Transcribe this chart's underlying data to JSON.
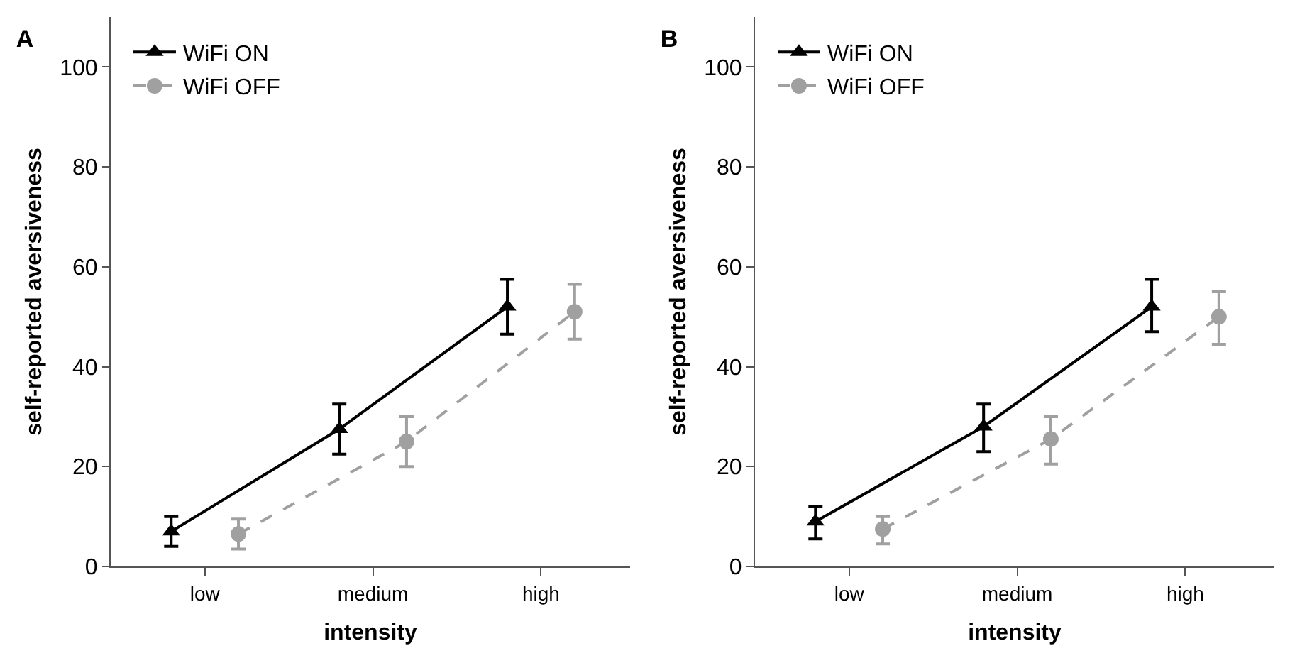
{
  "chart_data": [
    {
      "type": "line",
      "title": "A",
      "xlabel": "intensity",
      "ylabel": "self-reported aversiveness",
      "categories": [
        "low",
        "medium",
        "high"
      ],
      "ylim": [
        0,
        110
      ],
      "yticks": [
        0,
        20,
        40,
        60,
        80,
        100
      ],
      "grid": false,
      "legend": "top left",
      "series": [
        {
          "name": "WiFi ON",
          "color": "#000000",
          "marker": "triangle",
          "line_style": "solid",
          "values": [
            7,
            27.5,
            52
          ],
          "errors": [
            [
              4,
              10
            ],
            [
              22.5,
              32.5
            ],
            [
              46.5,
              57.5
            ]
          ]
        },
        {
          "name": "WiFi OFF",
          "color": "#a0a0a0",
          "marker": "circle",
          "line_style": "dashed",
          "values": [
            6.5,
            25,
            51
          ],
          "errors": [
            [
              3.5,
              9.5
            ],
            [
              20,
              30
            ],
            [
              45.5,
              56.5
            ]
          ]
        }
      ]
    },
    {
      "type": "line",
      "title": "B",
      "xlabel": "intensity",
      "ylabel": "self-reported aversiveness",
      "categories": [
        "low",
        "medium",
        "high"
      ],
      "ylim": [
        0,
        110
      ],
      "yticks": [
        0,
        20,
        40,
        60,
        80,
        100
      ],
      "grid": false,
      "legend": "top left",
      "series": [
        {
          "name": "WiFi ON",
          "color": "#000000",
          "marker": "triangle",
          "line_style": "solid",
          "values": [
            9,
            28,
            52
          ],
          "errors": [
            [
              5.5,
              12
            ],
            [
              23,
              32.5
            ],
            [
              47,
              57.5
            ]
          ]
        },
        {
          "name": "WiFi OFF",
          "color": "#a0a0a0",
          "marker": "circle",
          "line_style": "dashed",
          "values": [
            7.5,
            25.5,
            50
          ],
          "errors": [
            [
              4.5,
              10
            ],
            [
              20.5,
              30
            ],
            [
              44.5,
              55
            ]
          ]
        }
      ]
    }
  ]
}
